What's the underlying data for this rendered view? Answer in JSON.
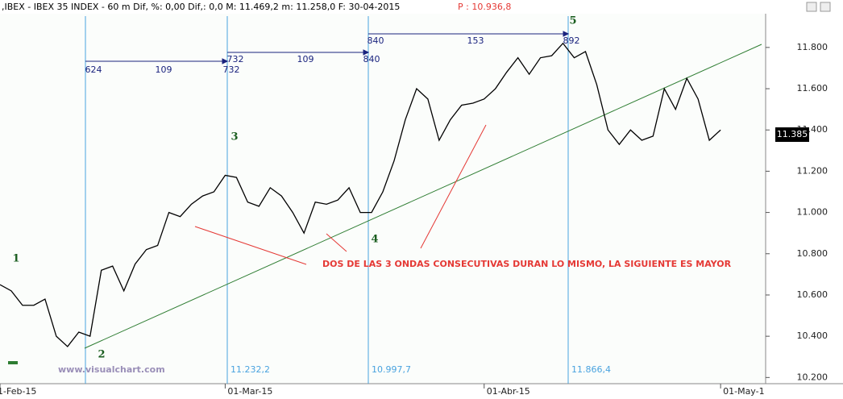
{
  "chart_data": {
    "type": "line",
    "title": ",IBEX - IBEX 35 INDEX -  60 m Dif, %: 0,00 Dif,: 0,0 M: 11.469,2 m: 11.258,0 F: 30-04-2015",
    "title_price": "P : 10.936,8",
    "color": "#000000",
    "values": [
      10650,
      10620,
      10550,
      10550,
      10580,
      10400,
      10350,
      10420,
      10400,
      10720,
      10740,
      10620,
      10750,
      10820,
      10840,
      11000,
      10980,
      11040,
      11080,
      11100,
      11180,
      11170,
      11050,
      11030,
      11120,
      11080,
      11000,
      10900,
      11050,
      11040,
      11060,
      11120,
      11000,
      11000,
      11100,
      11250,
      11450,
      11600,
      11550,
      11350,
      11450,
      11520,
      11530,
      11550,
      11600,
      11680,
      11750,
      11670,
      11750,
      11760,
      11820,
      11750,
      11780,
      11620,
      11400,
      11330,
      11400,
      11350,
      11370,
      11600,
      11500,
      11650,
      11550,
      11350,
      11400
    ],
    "xlim": [
      0,
      68
    ],
    "xticks": [
      {
        "value": 0,
        "label": "1-Feb-15"
      },
      {
        "value": 20,
        "label": "01-Mar-15"
      },
      {
        "value": 43,
        "label": "01-Abr-15"
      },
      {
        "value": 64,
        "label": "01-May-1"
      }
    ],
    "ylim": [
      10170,
      12030
    ],
    "yticks": [
      {
        "value": 10200,
        "label": "10.200"
      },
      {
        "value": 10400,
        "label": "10.400"
      },
      {
        "value": 10600,
        "label": "10.600"
      },
      {
        "value": 10800,
        "label": "10.800"
      },
      {
        "value": 11000,
        "label": "11.000"
      },
      {
        "value": 11200,
        "label": "11.200"
      },
      {
        "value": 11400,
        "label": "11.400"
      },
      {
        "value": 11600,
        "label": "11.600"
      },
      {
        "value": 11800,
        "label": "11.800"
      }
    ],
    "last_price_label": "11.385",
    "wave_labels": [
      "1",
      "2",
      "3",
      "4",
      "5"
    ],
    "measurements": [
      {
        "start": "624",
        "span": "109",
        "end": "732"
      },
      {
        "start": "732",
        "span": "109",
        "end": "840"
      },
      {
        "start": "840",
        "span": "153",
        "end": "892"
      }
    ],
    "vertical_line_labels": [
      "11.232,2",
      "10.997,7",
      "11.866,4"
    ],
    "annotation": "DOS DE LAS 3 ONDAS CONSECUTIVAS DURAN LO MISMO, LA SIGUIENTE ES MAYOR",
    "watermark": "www.visualchart.com"
  }
}
